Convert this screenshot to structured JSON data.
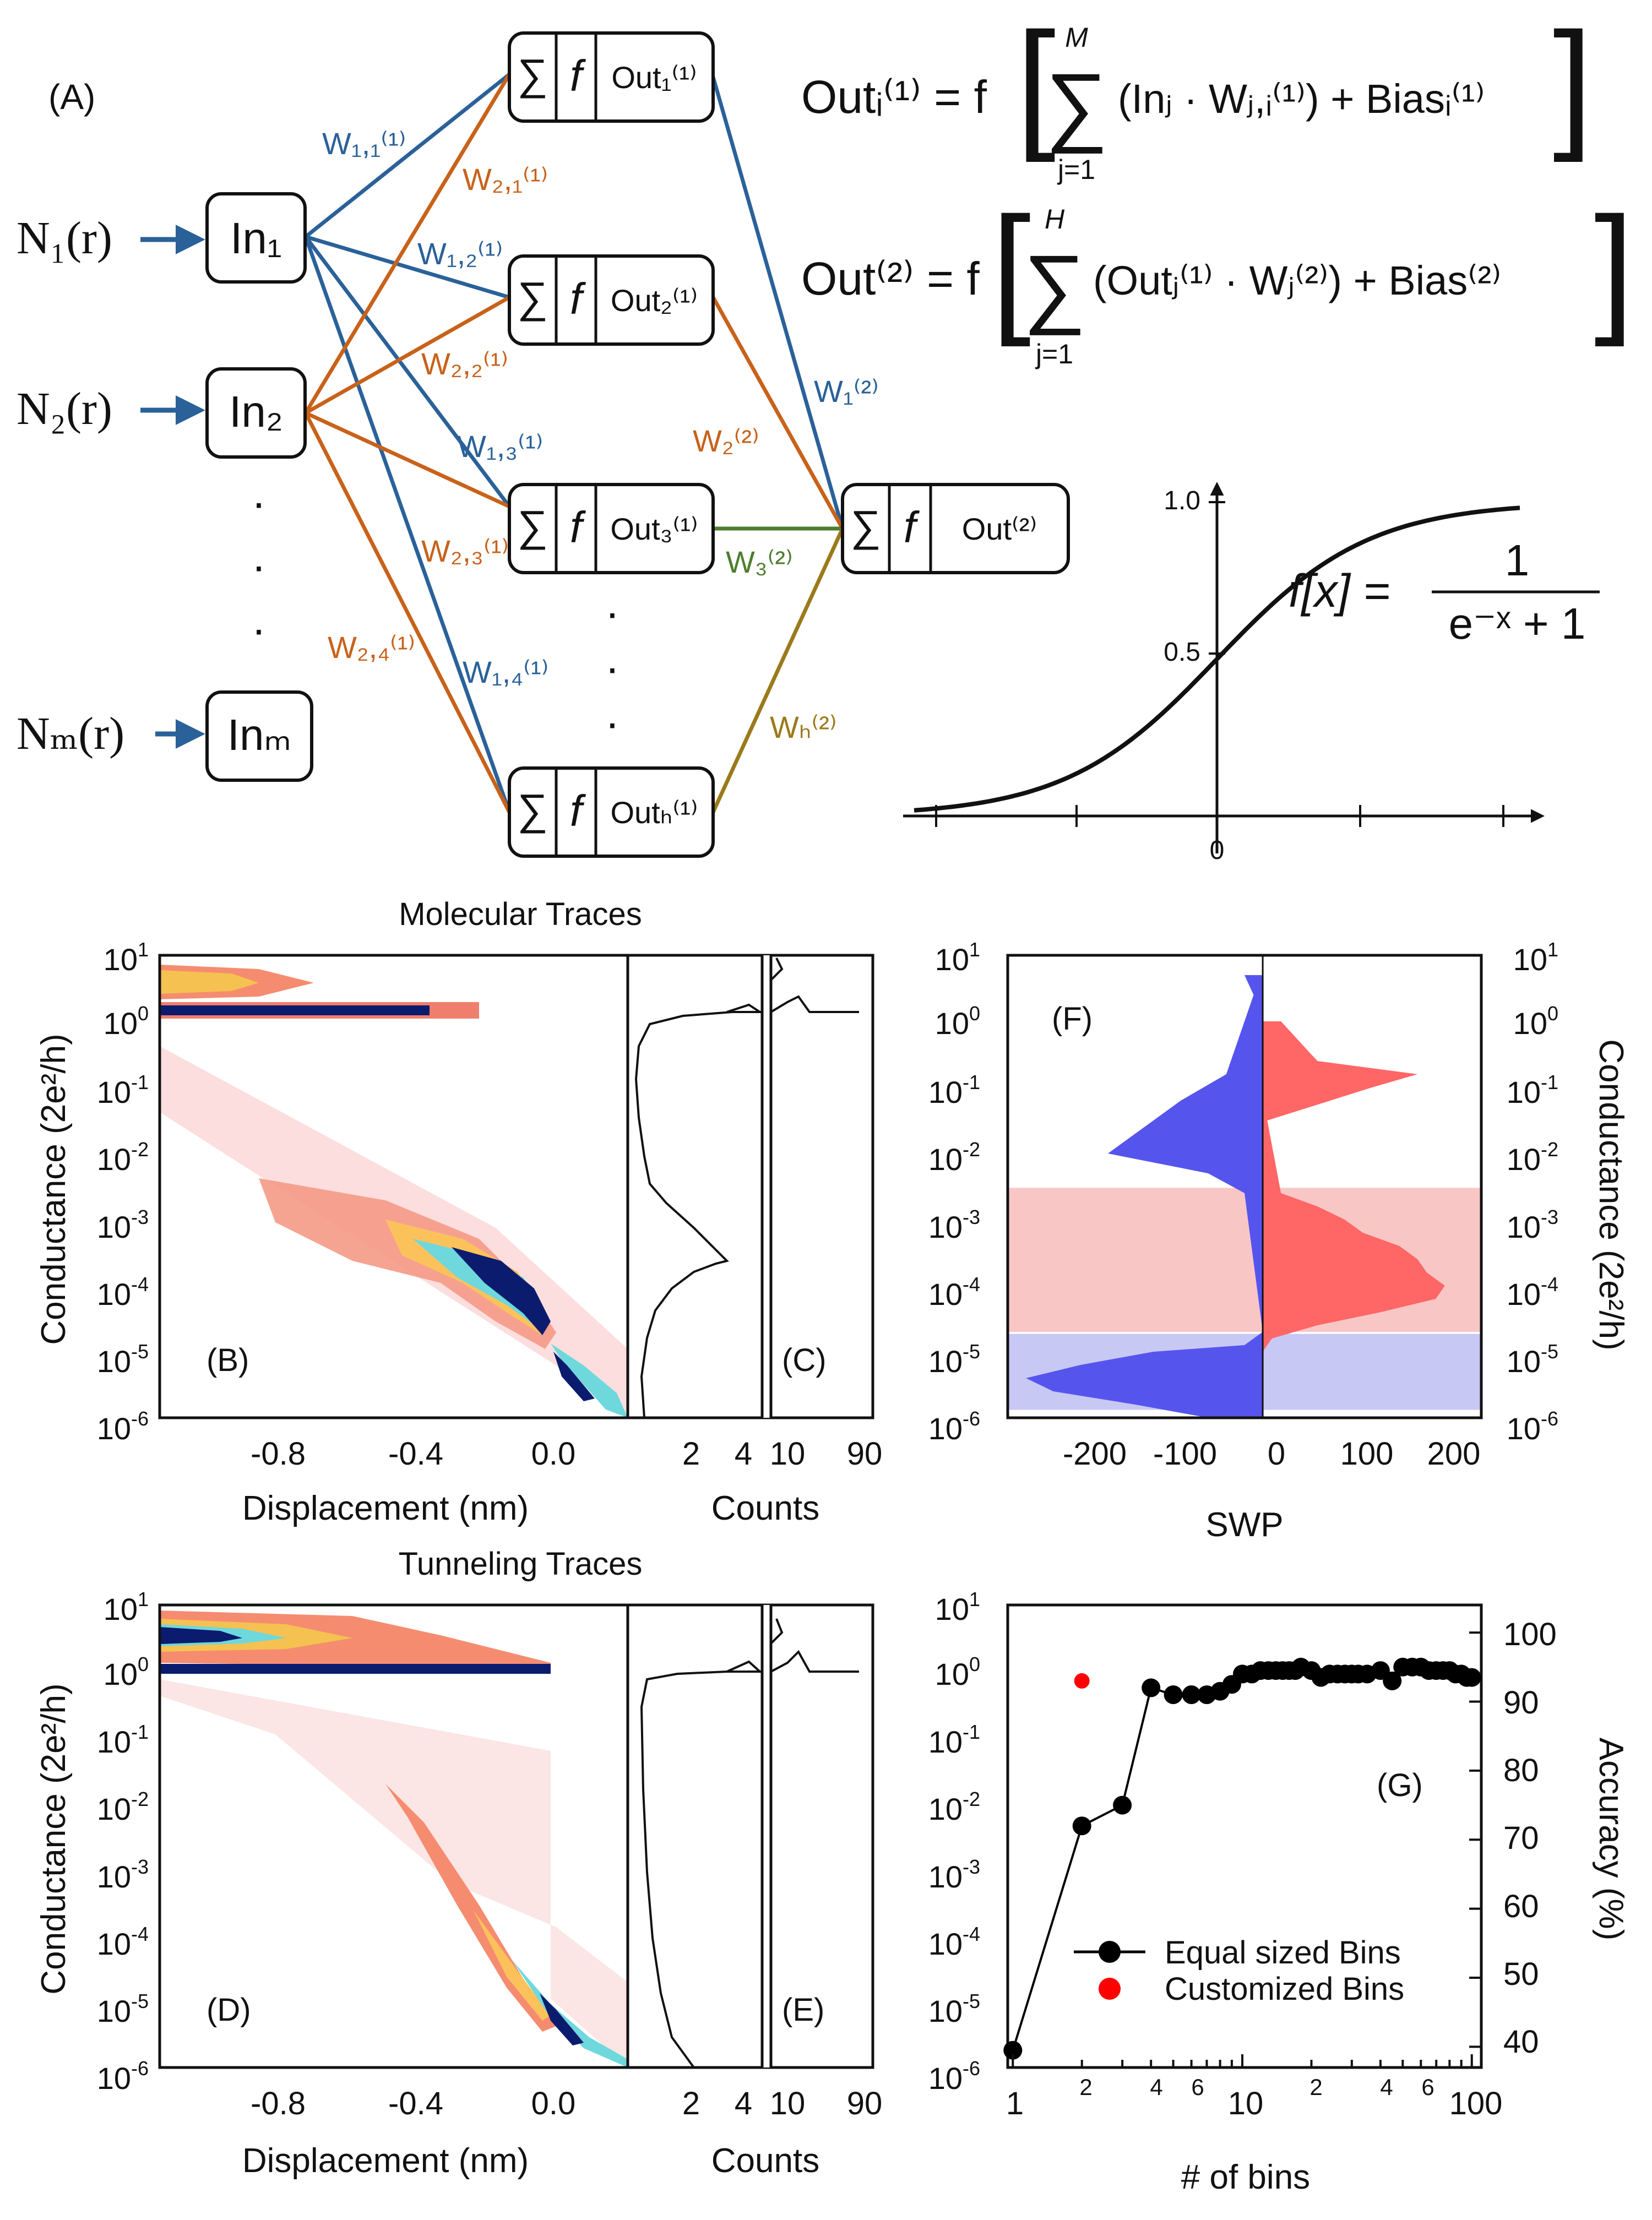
{
  "panel_labels": {
    "A": "(A)",
    "B": "(B)",
    "C": "(C)",
    "D": "(D)",
    "E": "(E)",
    "F": "(F)",
    "G": "(G)"
  },
  "network": {
    "inputs": [
      {
        "signal": "N₁(r)",
        "node": "In₁"
      },
      {
        "signal": "N₂(r)",
        "node": "In₂"
      },
      {
        "signal": "Nₘ(r)",
        "node": "Inₘ"
      }
    ],
    "hidden_nodes": [
      {
        "sum": "∑",
        "act": "f",
        "out": "Out₁⁽¹⁾"
      },
      {
        "sum": "∑",
        "act": "f",
        "out": "Out₂⁽¹⁾"
      },
      {
        "sum": "∑",
        "act": "f",
        "out": "Out₃⁽¹⁾"
      },
      {
        "sum": "∑",
        "act": "f",
        "out": "Outₕ⁽¹⁾"
      }
    ],
    "output_node": {
      "sum": "∑",
      "act": "f",
      "out": "Out⁽²⁾"
    },
    "weights_layer1": [
      "W₁,₁⁽¹⁾",
      "W₂,₁⁽¹⁾",
      "W₁,₂⁽¹⁾",
      "W₂,₂⁽¹⁾",
      "W₁,₃⁽¹⁾",
      "W₂,₃⁽¹⁾",
      "W₂,₄⁽¹⁾",
      "W₁,₄⁽¹⁾"
    ],
    "weights_layer2": [
      "W₁⁽²⁾",
      "W₂⁽²⁾",
      "W₃⁽²⁾",
      "Wₕ⁽²⁾"
    ],
    "dots": "·",
    "colors": {
      "blue": "#2a6199",
      "orange": "#c8621a",
      "green": "#4e7d2f",
      "olive": "#9b7a1b"
    }
  },
  "equations": {
    "eq1_lhs": "Outᵢ⁽¹⁾ = f",
    "eq1_sum_top": "M",
    "eq1_sum_bottom": "j=1",
    "eq1_body": "(Inⱼ · Wⱼ,ᵢ⁽¹⁾) + Biasᵢ⁽¹⁾",
    "eq2_lhs": "Out⁽²⁾ = f",
    "eq2_sum_top": "H",
    "eq2_sum_bottom": "j=1",
    "eq2_body": "(Outⱼ⁽¹⁾ · Wⱼ⁽²⁾) + Bias⁽²⁾",
    "sigmoid_lhs": "f[x] =",
    "sigmoid_num": "1",
    "sigmoid_den": "e⁻ˣ + 1"
  },
  "chart_data": [
    {
      "type": "line",
      "panel": "A-inset",
      "x_tick_labels": [
        "0"
      ],
      "y_tick_labels": [
        "0.5",
        "1.0"
      ],
      "function": "sigmoid",
      "x": [
        -4,
        -3,
        -2,
        -1.5,
        -1,
        -0.5,
        0,
        0.5,
        1,
        1.5,
        2,
        3,
        4
      ],
      "y": [
        0.018,
        0.047,
        0.119,
        0.182,
        0.269,
        0.378,
        0.5,
        0.622,
        0.731,
        0.818,
        0.881,
        0.953,
        0.982
      ],
      "xlim": [
        -4,
        4
      ],
      "ylim": [
        0,
        1.0
      ]
    },
    {
      "type": "heatmap",
      "panel": "B",
      "title": "Molecular Traces",
      "xlabel": "Displacement (nm)",
      "ylabel": "Conductance (2e²/h)",
      "x_ticks": [
        -0.8,
        -0.4,
        0.0
      ],
      "x_tick_labels": [
        "-0.8",
        "-0.4",
        "0.0"
      ],
      "y_scale": "log",
      "ylim": [
        1e-06,
        10
      ],
      "features": [
        "high density band near 1 G0",
        "molecular plateau near 1e-4 to 1e-3 G0"
      ]
    },
    {
      "type": "line",
      "panel": "C",
      "xlabel": "Counts",
      "x_tick_labels": [
        "2",
        "4",
        "10",
        "90"
      ],
      "y_scale": "log",
      "ylim": [
        1e-06,
        10
      ],
      "peak_conductance": [
        1.0,
        0.0002
      ]
    },
    {
      "type": "area",
      "panel": "F",
      "xlabel": "SWP",
      "ylabel": "Conductance (2e²/h)",
      "x_ticks": [
        -200,
        -100,
        0,
        100,
        200
      ],
      "x_tick_labels": [
        "-200",
        "-100",
        "0",
        "100",
        "200"
      ],
      "xlim": [
        -280,
        240
      ],
      "y_scale": "log",
      "ylim": [
        1e-06,
        10
      ],
      "series": [
        {
          "sign": "positive",
          "color": "#ff6666",
          "log_g": [
            -5.4,
            -5.0,
            -4.8,
            -4.6,
            -4.4,
            -4.2,
            -4.0,
            -3.8,
            -3.6,
            -3.4,
            -3.2,
            -3.0,
            -2.8,
            -2.6,
            -1.5,
            -1.0,
            -0.8,
            -0.6,
            -0.3,
            0.0
          ],
          "swp": [
            0,
            0,
            10,
            60,
            130,
            190,
            200,
            180,
            170,
            150,
            110,
            90,
            60,
            20,
            5,
            120,
            170,
            60,
            40,
            20
          ]
        },
        {
          "sign": "negative",
          "color": "#5555ee",
          "log_g": [
            -6.0,
            -5.8,
            -5.6,
            -5.4,
            -5.2,
            -5.0,
            -4.9,
            -4.7,
            -2.6,
            -2.3,
            -2.0,
            -1.6,
            -1.2,
            -0.8,
            0.4,
            0.7
          ],
          "swp": [
            -60,
            -140,
            -230,
            -260,
            -200,
            -120,
            -20,
            0,
            -20,
            -60,
            -170,
            -130,
            -90,
            -40,
            -10,
            -20
          ]
        }
      ],
      "shaded_bands": [
        {
          "log_g_range": [
            -4.7,
            -2.52
          ],
          "color": "#f9c6c6"
        },
        {
          "log_g_range": [
            -5.88,
            -4.73
          ],
          "color": "#c8c8f5"
        }
      ]
    },
    {
      "type": "heatmap",
      "panel": "D",
      "title": "Tunneling Traces",
      "xlabel": "Displacement (nm)",
      "ylabel": "Conductance (2e²/h)",
      "x_tick_labels": [
        "-0.8",
        "-0.4",
        "0.0"
      ],
      "y_scale": "log",
      "ylim": [
        1e-06,
        10
      ],
      "features": [
        "high density band near 1-10 G0",
        "steep tunneling decay from 1e-1 to 1e-6"
      ]
    },
    {
      "type": "line",
      "panel": "E",
      "xlabel": "Counts",
      "x_tick_labels": [
        "2",
        "4",
        "10",
        "90"
      ],
      "y_scale": "log",
      "ylim": [
        1e-06,
        10
      ],
      "peak_conductance": [
        1.0
      ]
    },
    {
      "type": "scatter",
      "panel": "G",
      "xlabel": "# of bins",
      "ylabel": "Accuracy (%)",
      "x_scale": "log",
      "xlim": [
        0.95,
        110
      ],
      "ylim": [
        37,
        104
      ],
      "x_tick_labels": [
        "1",
        "2",
        "4",
        "6",
        "10",
        "2",
        "4",
        "6",
        "100"
      ],
      "y_tick_labels": [
        "40",
        "50",
        "60",
        "70",
        "80",
        "90",
        "100"
      ],
      "legend_position": "bottom-right",
      "series": [
        {
          "name": "Equal sized Bins",
          "color": "#000000",
          "x": [
            1,
            2,
            3,
            4,
            5,
            6,
            7,
            8,
            9,
            10,
            11,
            12,
            13,
            14,
            15,
            16,
            17,
            18,
            20,
            22,
            24,
            26,
            28,
            30,
            32,
            35,
            40,
            45,
            50,
            55,
            60,
            65,
            70,
            75,
            80,
            85,
            90,
            95,
            100
          ],
          "y": [
            39.5,
            72,
            75,
            92,
            91,
            91,
            91,
            91.5,
            92.5,
            94,
            94,
            94.5,
            94.5,
            94.5,
            94.5,
            94.5,
            94.5,
            95,
            94.5,
            93.5,
            94,
            94,
            94,
            94,
            94,
            94,
            94.5,
            93,
            95,
            95,
            95,
            94.5,
            94.5,
            94.5,
            94.5,
            94,
            94,
            93.5,
            93.5
          ]
        },
        {
          "name": "Customized Bins",
          "color": "#ff0000",
          "x": [
            2
          ],
          "y": [
            93
          ]
        }
      ]
    }
  ]
}
